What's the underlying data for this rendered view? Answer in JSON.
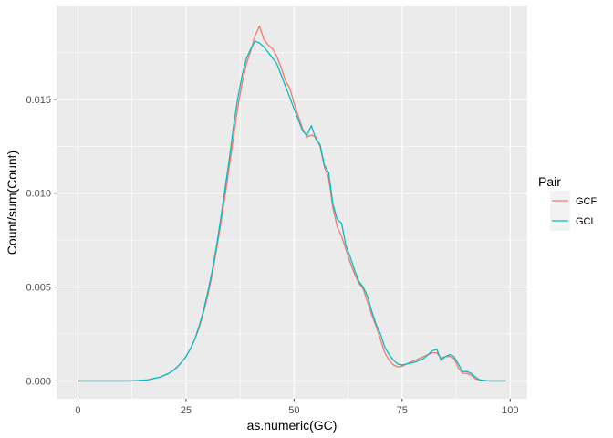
{
  "chart_data": {
    "type": "line",
    "xlabel": "as.numeric(GC)",
    "ylabel": "Count/sum(Count)",
    "xlim": [
      -4.95,
      103.95
    ],
    "ylim": [
      -0.00095,
      0.01995
    ],
    "x_ticks": [
      0,
      25,
      50,
      75,
      100
    ],
    "y_ticks": [
      0.0,
      0.005,
      0.01,
      0.015
    ],
    "x_tick_labels": [
      "0",
      "25",
      "50",
      "75",
      "100"
    ],
    "y_tick_labels": [
      "0.000",
      "0.005",
      "0.010",
      "0.015"
    ],
    "grid": true,
    "legend": {
      "title": "Pair",
      "position": "right",
      "entries": [
        "GCF",
        "GCL"
      ]
    },
    "series": [
      {
        "name": "GCF",
        "color": "#F8766D",
        "points": [
          [
            0,
            0.0
          ],
          [
            5,
            0.0
          ],
          [
            10,
            0.0
          ],
          [
            12,
            0.0
          ],
          [
            14,
            2e-05
          ],
          [
            16,
            5e-05
          ],
          [
            17,
            0.0001
          ],
          [
            18,
            0.00015
          ],
          [
            19,
            0.0002
          ],
          [
            20,
            0.0003
          ],
          [
            21,
            0.0004
          ],
          [
            22,
            0.00055
          ],
          [
            23,
            0.00075
          ],
          [
            24,
            0.001
          ],
          [
            25,
            0.0013
          ],
          [
            26,
            0.0017
          ],
          [
            27,
            0.0022
          ],
          [
            28,
            0.0028
          ],
          [
            29,
            0.0036
          ],
          [
            30,
            0.0045
          ],
          [
            31,
            0.0056
          ],
          [
            32,
            0.0069
          ],
          [
            33,
            0.0083
          ],
          [
            34,
            0.0098
          ],
          [
            35,
            0.0114
          ],
          [
            36,
            0.013
          ],
          [
            37,
            0.0146
          ],
          [
            38,
            0.0159
          ],
          [
            39,
            0.0169
          ],
          [
            40,
            0.0176
          ],
          [
            41,
            0.0184
          ],
          [
            42,
            0.0189
          ],
          [
            43,
            0.0182
          ],
          [
            44,
            0.0179
          ],
          [
            45,
            0.0177
          ],
          [
            46,
            0.0173
          ],
          [
            47,
            0.0167
          ],
          [
            48,
            0.016
          ],
          [
            49,
            0.0156
          ],
          [
            50,
            0.0148
          ],
          [
            51,
            0.0141
          ],
          [
            52,
            0.0134
          ],
          [
            53,
            0.013
          ],
          [
            54,
            0.0131
          ],
          [
            55,
            0.013
          ],
          [
            56,
            0.0125
          ],
          [
            57,
            0.0114
          ],
          [
            58,
            0.0108
          ],
          [
            59,
            0.0092
          ],
          [
            60,
            0.0082
          ],
          [
            61,
            0.0077
          ],
          [
            62,
            0.007
          ],
          [
            63,
            0.0063
          ],
          [
            64,
            0.0057
          ],
          [
            65,
            0.0052
          ],
          [
            66,
            0.0049
          ],
          [
            67,
            0.0042
          ],
          [
            68,
            0.0035
          ],
          [
            69,
            0.0029
          ],
          [
            70,
            0.0022
          ],
          [
            71,
            0.0015
          ],
          [
            72,
            0.0011
          ],
          [
            73,
            0.00085
          ],
          [
            74,
            0.00075
          ],
          [
            75,
            0.00078
          ],
          [
            76,
            0.0009
          ],
          [
            77,
            0.001
          ],
          [
            78,
            0.0011
          ],
          [
            79,
            0.0012
          ],
          [
            80,
            0.0013
          ],
          [
            81,
            0.0014
          ],
          [
            82,
            0.0015
          ],
          [
            83,
            0.0015
          ],
          [
            84,
            0.0012
          ],
          [
            85,
            0.0013
          ],
          [
            86,
            0.0013
          ],
          [
            87,
            0.0012
          ],
          [
            88,
            0.0007
          ],
          [
            89,
            0.0004
          ],
          [
            90,
            0.0004
          ],
          [
            91,
            0.0003
          ],
          [
            92,
            0.0001
          ],
          [
            93,
            5e-05
          ],
          [
            95,
            0.0
          ],
          [
            99,
            0.0
          ]
        ]
      },
      {
        "name": "GCL",
        "color": "#00BFC4",
        "points": [
          [
            0,
            0.0
          ],
          [
            5,
            0.0
          ],
          [
            10,
            0.0
          ],
          [
            12,
            0.0
          ],
          [
            14,
            2e-05
          ],
          [
            16,
            5e-05
          ],
          [
            17,
            0.0001
          ],
          [
            18,
            0.00015
          ],
          [
            19,
            0.0002
          ],
          [
            20,
            0.0003
          ],
          [
            21,
            0.0004
          ],
          [
            22,
            0.00055
          ],
          [
            23,
            0.00075
          ],
          [
            24,
            0.001
          ],
          [
            25,
            0.0013
          ],
          [
            26,
            0.0017
          ],
          [
            27,
            0.0022
          ],
          [
            28,
            0.0029
          ],
          [
            29,
            0.0037
          ],
          [
            30,
            0.0047
          ],
          [
            31,
            0.0058
          ],
          [
            32,
            0.0071
          ],
          [
            33,
            0.0086
          ],
          [
            34,
            0.0102
          ],
          [
            35,
            0.0118
          ],
          [
            36,
            0.0136
          ],
          [
            37,
            0.0151
          ],
          [
            38,
            0.0163
          ],
          [
            39,
            0.0172
          ],
          [
            40,
            0.0177
          ],
          [
            41,
            0.0181
          ],
          [
            42,
            0.018
          ],
          [
            43,
            0.0178
          ],
          [
            44,
            0.0175
          ],
          [
            45,
            0.0172
          ],
          [
            46,
            0.0169
          ],
          [
            47,
            0.0163
          ],
          [
            48,
            0.0157
          ],
          [
            49,
            0.0151
          ],
          [
            50,
            0.0145
          ],
          [
            51,
            0.0139
          ],
          [
            52,
            0.0133
          ],
          [
            53,
            0.0131
          ],
          [
            54,
            0.0136
          ],
          [
            55,
            0.0129
          ],
          [
            56,
            0.0126
          ],
          [
            57,
            0.0115
          ],
          [
            58,
            0.0111
          ],
          [
            59,
            0.0094
          ],
          [
            60,
            0.0086
          ],
          [
            61,
            0.0084
          ],
          [
            62,
            0.0072
          ],
          [
            63,
            0.0066
          ],
          [
            64,
            0.0059
          ],
          [
            65,
            0.0053
          ],
          [
            66,
            0.005
          ],
          [
            67,
            0.0045
          ],
          [
            68,
            0.0037
          ],
          [
            69,
            0.003
          ],
          [
            70,
            0.0025
          ],
          [
            71,
            0.0018
          ],
          [
            72,
            0.0014
          ],
          [
            73,
            0.0011
          ],
          [
            74,
            0.0009
          ],
          [
            75,
            0.00085
          ],
          [
            76,
            0.0009
          ],
          [
            77,
            0.00095
          ],
          [
            78,
            0.001
          ],
          [
            79,
            0.0011
          ],
          [
            80,
            0.0012
          ],
          [
            81,
            0.0014
          ],
          [
            82,
            0.0016
          ],
          [
            83,
            0.0017
          ],
          [
            84,
            0.0011
          ],
          [
            85,
            0.0013
          ],
          [
            86,
            0.0014
          ],
          [
            87,
            0.0013
          ],
          [
            88,
            0.0009
          ],
          [
            89,
            0.0005
          ],
          [
            90,
            0.0005
          ],
          [
            91,
            0.0004
          ],
          [
            92,
            0.0002
          ],
          [
            93,
            5e-05
          ],
          [
            95,
            0.0
          ],
          [
            99,
            0.0
          ]
        ]
      }
    ]
  }
}
